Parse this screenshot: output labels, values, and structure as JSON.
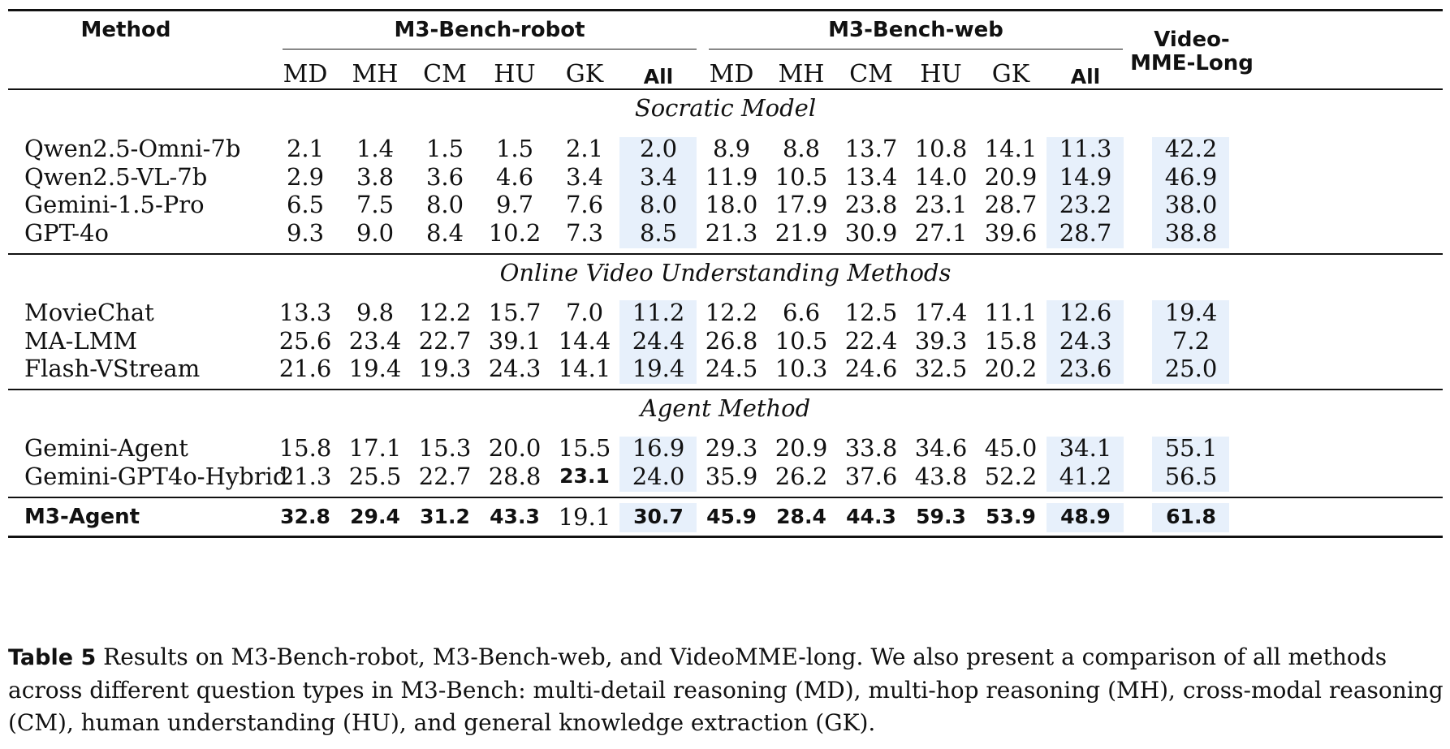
{
  "table": {
    "header": {
      "method": "Method",
      "group_robot": "M3-Bench-robot",
      "group_web": "M3-Bench-web",
      "group_video_line1": "Video-",
      "group_video_line2": "MME-Long",
      "sub_columns": [
        "MD",
        "MH",
        "CM",
        "HU",
        "GK",
        "All"
      ]
    },
    "sections": [
      {
        "title": "Socratic Model",
        "rows": [
          {
            "method": "Qwen2.5-Omni-7b",
            "robot": [
              "2.1",
              "1.4",
              "1.5",
              "1.5",
              "2.1",
              "2.0"
            ],
            "web": [
              "8.9",
              "8.8",
              "13.7",
              "10.8",
              "14.1",
              "11.3"
            ],
            "video": "42.2"
          },
          {
            "method": "Qwen2.5-VL-7b",
            "robot": [
              "2.9",
              "3.8",
              "3.6",
              "4.6",
              "3.4",
              "3.4"
            ],
            "web": [
              "11.9",
              "10.5",
              "13.4",
              "14.0",
              "20.9",
              "14.9"
            ],
            "video": "46.9"
          },
          {
            "method": "Gemini-1.5-Pro",
            "robot": [
              "6.5",
              "7.5",
              "8.0",
              "9.7",
              "7.6",
              "8.0"
            ],
            "web": [
              "18.0",
              "17.9",
              "23.8",
              "23.1",
              "28.7",
              "23.2"
            ],
            "video": "38.0"
          },
          {
            "method": "GPT-4o",
            "robot": [
              "9.3",
              "9.0",
              "8.4",
              "10.2",
              "7.3",
              "8.5"
            ],
            "web": [
              "21.3",
              "21.9",
              "30.9",
              "27.1",
              "39.6",
              "28.7"
            ],
            "video": "38.8"
          }
        ]
      },
      {
        "title": "Online Video Understanding Methods",
        "rows": [
          {
            "method": "MovieChat",
            "robot": [
              "13.3",
              "9.8",
              "12.2",
              "15.7",
              "7.0",
              "11.2"
            ],
            "web": [
              "12.2",
              "6.6",
              "12.5",
              "17.4",
              "11.1",
              "12.6"
            ],
            "video": "19.4"
          },
          {
            "method": "MA-LMM",
            "robot": [
              "25.6",
              "23.4",
              "22.7",
              "39.1",
              "14.4",
              "24.4"
            ],
            "web": [
              "26.8",
              "10.5",
              "22.4",
              "39.3",
              "15.8",
              "24.3"
            ],
            "video": "7.2"
          },
          {
            "method": "Flash-VStream",
            "robot": [
              "21.6",
              "19.4",
              "19.3",
              "24.3",
              "14.1",
              "19.4"
            ],
            "web": [
              "24.5",
              "10.3",
              "24.6",
              "32.5",
              "20.2",
              "23.6"
            ],
            "video": "25.0"
          }
        ]
      },
      {
        "title": "Agent Method",
        "rows": [
          {
            "method": "Gemini-Agent",
            "robot": [
              "15.8",
              "17.1",
              "15.3",
              "20.0",
              "15.5",
              "16.9"
            ],
            "web": [
              "29.3",
              "20.9",
              "33.8",
              "34.6",
              "45.0",
              "34.1"
            ],
            "video": "55.1"
          },
          {
            "method": "Gemini-GPT4o-Hybrid",
            "robot": [
              "21.3",
              "25.5",
              "22.7",
              "28.8",
              "23.1",
              "24.0"
            ],
            "web": [
              "35.9",
              "26.2",
              "37.6",
              "43.8",
              "52.2",
              "41.2"
            ],
            "video": "56.5"
          }
        ]
      }
    ],
    "final_row": {
      "method": "M3-Agent",
      "robot": [
        "32.8",
        "29.4",
        "31.2",
        "43.3",
        "19.1",
        "30.7"
      ],
      "web": [
        "45.9",
        "28.4",
        "44.3",
        "59.3",
        "53.9",
        "48.9"
      ],
      "video": "61.8"
    },
    "highlight_color": "#e7f0fb"
  },
  "caption": {
    "label": "Table 5",
    "text": "Results on M3-Bench-robot, M3-Bench-web, and VideoMME-long. We also present a comparison of all methods across different question types in M3-Bench: multi-detail reasoning (MD), multi-hop reasoning (MH), cross-modal reasoning (CM), human understanding (HU), and general knowledge extraction (GK)."
  }
}
